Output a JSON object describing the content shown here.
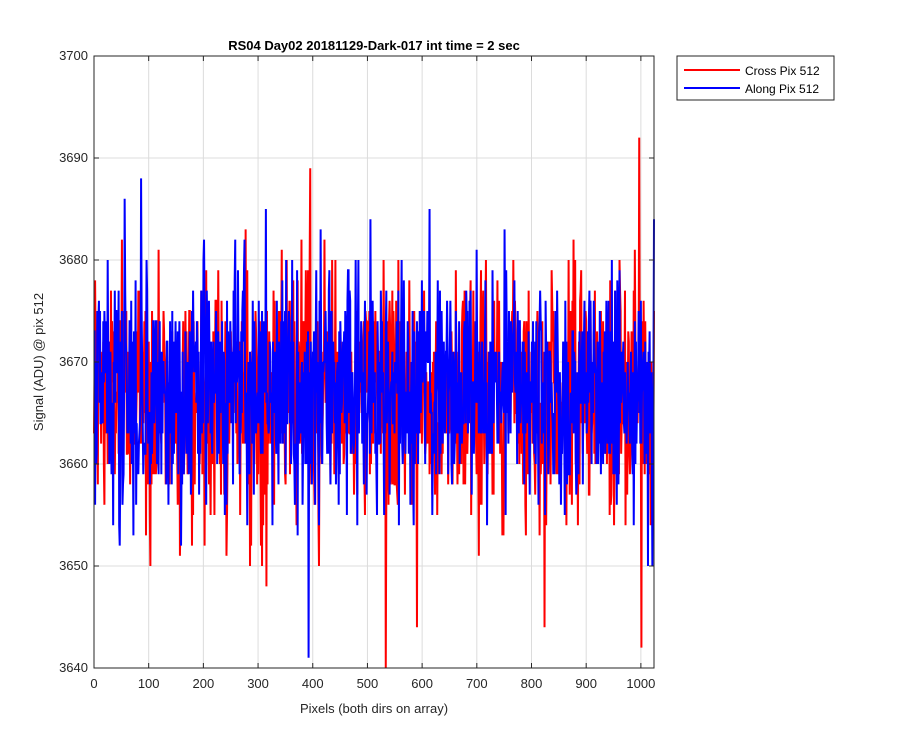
{
  "chart_data": {
    "type": "line",
    "title": "RS04 Day02 20181129-Dark-017 int time = 2 sec",
    "xlabel": "Pixels (both dirs on array)",
    "ylabel": "Signal (ADU) @ pix 512",
    "xlim": [
      0,
      1024
    ],
    "ylim": [
      3640,
      3700
    ],
    "xticks": [
      0,
      100,
      200,
      300,
      400,
      500,
      600,
      700,
      800,
      900,
      1000
    ],
    "yticks": [
      3640,
      3650,
      3660,
      3670,
      3680,
      3690,
      3700
    ],
    "grid": true,
    "legend_position": "outside-top-right",
    "series": [
      {
        "name": "Cross Pix 512",
        "color": "#ff0000",
        "mean": 3666.8,
        "std": 6.0,
        "min": 3640,
        "max": 3692,
        "length": 1024,
        "notable_points": [
          [
            395,
            3689
          ],
          [
            533,
            3640
          ],
          [
            996,
            3692
          ],
          [
            1000,
            3642
          ],
          [
            823,
            3644
          ],
          [
            590,
            3644
          ]
        ]
      },
      {
        "name": "Along Pix 512",
        "color": "#0000ff",
        "mean": 3667.2,
        "std": 6.0,
        "min": 3641,
        "max": 3688,
        "length": 1024,
        "notable_points": [
          [
            86,
            3688
          ],
          [
            392,
            3641
          ],
          [
            1012,
            3650
          ],
          [
            1020,
            3650
          ],
          [
            1024,
            3684
          ]
        ]
      }
    ]
  }
}
